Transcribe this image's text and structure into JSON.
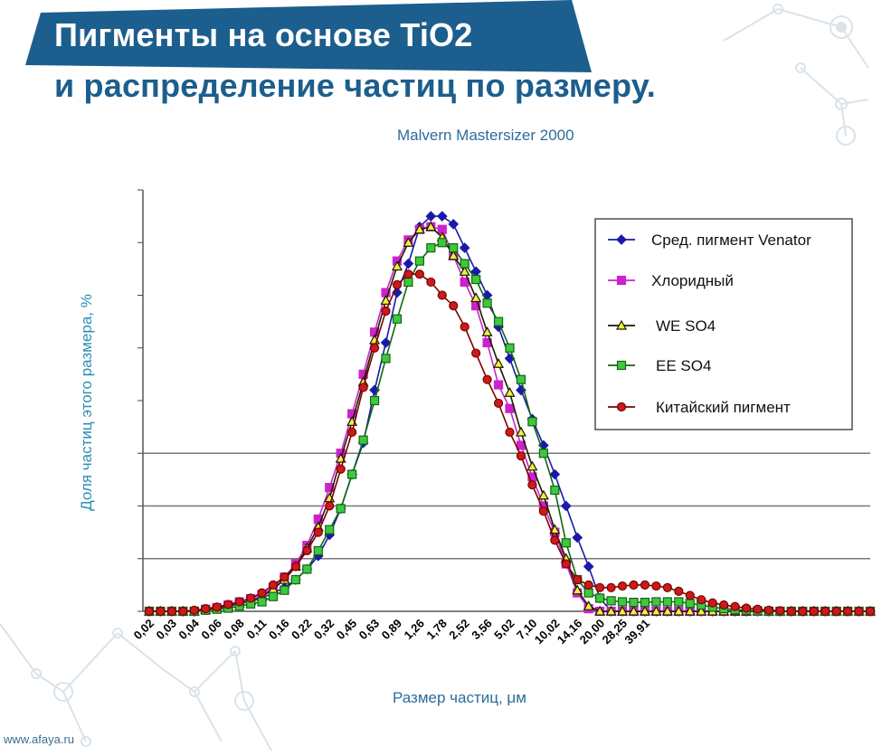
{
  "title": {
    "line1": "Пигменты на основе TiO2",
    "line2": "и распределение частиц по размеру."
  },
  "subtitle": "Malvern Mastersizer 2000",
  "footer": "www.afaya.ru",
  "colors": {
    "banner": "#1c5e8d",
    "axis_label": "#2a8fb3",
    "text_blue": "#2a6d9a"
  },
  "chart_data": {
    "type": "line",
    "title": "Malvern Mastersizer 2000",
    "xlabel": "Размер частиц, μм",
    "ylabel": "Доля частиц этого размера, %",
    "x_tick_labels": [
      "0,02",
      "0,03",
      "0,04",
      "0,06",
      "0,08",
      "0,11",
      "0,16",
      "0,22",
      "0,32",
      "0,45",
      "0,63",
      "0,89",
      "1,26",
      "1,78",
      "2,52",
      "3,56",
      "5,02",
      "7,10",
      "10,02",
      "14,16",
      "20,00",
      "28,25",
      "39,91"
    ],
    "points_per_tick": 2,
    "ylim": [
      0,
      8
    ],
    "y_gridlines": [
      0,
      1,
      2,
      3,
      4,
      5,
      6,
      7,
      8
    ],
    "y_labels_shown": false,
    "legend_position": "top-right",
    "series": [
      {
        "name": "Сред. пигмент  Venator",
        "color": "#1a1aa8",
        "marker": "diamond",
        "values": [
          0,
          0,
          0,
          0,
          0,
          0.03,
          0.06,
          0.1,
          0.15,
          0.2,
          0.25,
          0.35,
          0.45,
          0.6,
          0.8,
          1.05,
          1.45,
          1.95,
          2.6,
          3.2,
          4.2,
          5.1,
          6.05,
          6.6,
          7.3,
          7.5,
          7.5,
          7.35,
          6.9,
          6.45,
          6.0,
          5.4,
          4.8,
          4.2,
          3.65,
          3.15,
          2.6,
          2.0,
          1.4,
          0.85,
          0.25,
          0,
          0,
          0,
          0,
          0,
          0,
          0,
          0,
          0,
          0,
          0,
          0,
          0,
          0,
          0,
          0,
          0,
          0,
          0,
          0,
          0,
          0,
          0,
          0
        ]
      },
      {
        "name": "Хлоридный",
        "color": "#cc22cc",
        "marker": "square",
        "values": [
          0,
          0,
          0,
          0,
          0,
          0.04,
          0.07,
          0.12,
          0.18,
          0.24,
          0.32,
          0.45,
          0.65,
          0.9,
          1.25,
          1.75,
          2.35,
          3.0,
          3.75,
          4.5,
          5.3,
          6.05,
          6.65,
          7.05,
          7.25,
          7.3,
          7.25,
          6.75,
          6.25,
          5.8,
          5.1,
          4.3,
          3.85,
          3.15,
          2.55,
          2.0,
          1.5,
          0.9,
          0.35,
          0.05,
          0,
          0,
          0,
          0,
          0,
          0,
          0,
          0,
          0,
          0,
          0,
          0,
          0,
          0,
          0,
          0,
          0,
          0,
          0,
          0,
          0,
          0,
          0,
          0,
          0
        ]
      },
      {
        "name": "WE SO4",
        "color": "#1a1a00",
        "fill": "#f0f040",
        "marker": "triangle",
        "values": [
          0,
          0,
          0,
          0,
          0,
          0.03,
          0.06,
          0.1,
          0.15,
          0.2,
          0.28,
          0.42,
          0.6,
          0.85,
          1.2,
          1.6,
          2.15,
          2.9,
          3.6,
          4.35,
          5.15,
          5.9,
          6.55,
          7.0,
          7.25,
          7.3,
          7.1,
          6.75,
          6.45,
          5.95,
          5.3,
          4.7,
          4.15,
          3.4,
          2.75,
          2.2,
          1.55,
          1.0,
          0.4,
          0.1,
          0,
          0,
          0,
          0,
          0,
          0,
          0,
          0,
          0,
          0,
          0,
          0,
          0,
          0,
          0,
          0,
          0,
          0,
          0,
          0,
          0,
          0,
          0,
          0,
          0
        ]
      },
      {
        "name": "EE SO4",
        "color": "#126612",
        "fill": "#3ec83e",
        "marker": "square",
        "values": [
          0,
          0,
          0,
          0,
          0,
          0.02,
          0.04,
          0.06,
          0.1,
          0.14,
          0.18,
          0.28,
          0.4,
          0.6,
          0.8,
          1.15,
          1.55,
          1.95,
          2.6,
          3.25,
          4.0,
          4.8,
          5.55,
          6.25,
          6.65,
          6.9,
          7.0,
          6.9,
          6.6,
          6.3,
          5.85,
          5.5,
          5.0,
          4.4,
          3.6,
          3.0,
          2.3,
          1.3,
          0.6,
          0.35,
          0.25,
          0.2,
          0.18,
          0.17,
          0.17,
          0.18,
          0.18,
          0.18,
          0.15,
          0.12,
          0.08,
          0.05,
          0.03,
          0.02,
          0.01,
          0,
          0,
          0,
          0,
          0,
          0,
          0,
          0,
          0,
          0
        ]
      },
      {
        "name": "Китайский пигмент",
        "color": "#7a0000",
        "fill": "#cc1a1a",
        "marker": "circle",
        "values": [
          0,
          0,
          0,
          0,
          0.02,
          0.05,
          0.08,
          0.13,
          0.18,
          0.25,
          0.35,
          0.5,
          0.65,
          0.85,
          1.15,
          1.5,
          2.0,
          2.7,
          3.4,
          4.25,
          5.0,
          5.7,
          6.2,
          6.4,
          6.4,
          6.25,
          6.0,
          5.8,
          5.4,
          4.9,
          4.4,
          3.95,
          3.4,
          2.95,
          2.4,
          1.9,
          1.35,
          0.9,
          0.6,
          0.5,
          0.45,
          0.45,
          0.48,
          0.5,
          0.5,
          0.48,
          0.45,
          0.38,
          0.3,
          0.22,
          0.16,
          0.12,
          0.09,
          0.06,
          0.04,
          0.02,
          0.01,
          0,
          0,
          0,
          0,
          0,
          0,
          0,
          0
        ]
      }
    ]
  }
}
